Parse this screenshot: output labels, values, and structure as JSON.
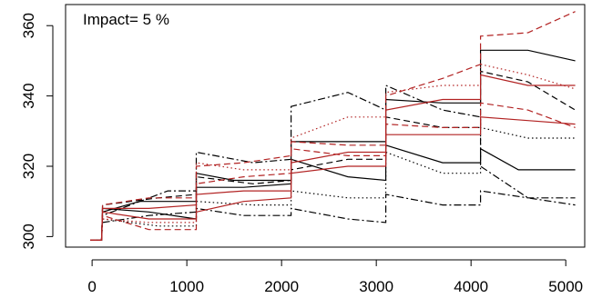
{
  "chart_data": {
    "type": "line",
    "title": "Impact= 5 %",
    "xlabel": "",
    "ylabel": "",
    "xlim": [
      -280,
      5200
    ],
    "ylim": [
      297,
      366
    ],
    "grid": false,
    "legend": "none",
    "x_ticks": [
      0,
      1000,
      2000,
      3000,
      4000,
      5000
    ],
    "y_ticks": [
      300,
      320,
      340,
      360
    ],
    "colors": {
      "black": "#000000",
      "red": "#b22222"
    },
    "series": [
      {
        "color": "black",
        "dash": "solid",
        "points": [
          [
            -20,
            299
          ],
          [
            100,
            299
          ],
          [
            110,
            307
          ],
          [
            500,
            310
          ],
          [
            1100,
            310
          ],
          [
            1100,
            318
          ],
          [
            1500,
            316
          ],
          [
            2100,
            316
          ],
          [
            2100,
            327
          ],
          [
            2600,
            327
          ],
          [
            3100,
            327
          ],
          [
            3100,
            339
          ],
          [
            3700,
            338
          ],
          [
            4100,
            338
          ],
          [
            4100,
            353
          ],
          [
            4600,
            353
          ],
          [
            5100,
            350
          ]
        ]
      },
      {
        "color": "black",
        "dash": "solid",
        "points": [
          [
            -20,
            299
          ],
          [
            100,
            299
          ],
          [
            110,
            308
          ],
          [
            600,
            307
          ],
          [
            1100,
            305
          ],
          [
            1100,
            314
          ],
          [
            1600,
            314
          ],
          [
            2100,
            315
          ],
          [
            2100,
            322
          ],
          [
            2700,
            317
          ],
          [
            3100,
            316
          ],
          [
            3100,
            326
          ],
          [
            3700,
            321
          ],
          [
            4100,
            321
          ],
          [
            4100,
            325
          ],
          [
            4500,
            319
          ],
          [
            5100,
            319
          ]
        ]
      },
      {
        "color": "black",
        "dash": "dashed",
        "points": [
          [
            -20,
            299
          ],
          [
            100,
            299
          ],
          [
            110,
            309
          ],
          [
            700,
            311
          ],
          [
            1100,
            312
          ],
          [
            1100,
            317
          ],
          [
            1700,
            315
          ],
          [
            2100,
            316
          ],
          [
            2100,
            319
          ],
          [
            2700,
            322
          ],
          [
            3100,
            322
          ],
          [
            3100,
            334
          ],
          [
            3700,
            331
          ],
          [
            4100,
            331
          ],
          [
            4100,
            347
          ],
          [
            4600,
            344
          ],
          [
            5100,
            336
          ]
        ]
      },
      {
        "color": "black",
        "dash": "dashdot",
        "points": [
          [
            -20,
            299
          ],
          [
            100,
            299
          ],
          [
            110,
            306
          ],
          [
            800,
            313
          ],
          [
            1100,
            313
          ],
          [
            1100,
            324
          ],
          [
            1700,
            321
          ],
          [
            2100,
            322
          ],
          [
            2100,
            337
          ],
          [
            2700,
            341
          ],
          [
            3100,
            336
          ],
          [
            3100,
            343
          ],
          [
            3700,
            336
          ],
          [
            4100,
            334
          ],
          [
            4100,
            320
          ],
          [
            4600,
            311
          ],
          [
            5100,
            309
          ]
        ]
      },
      {
        "color": "black",
        "dash": "dotted",
        "points": [
          [
            -20,
            299
          ],
          [
            100,
            299
          ],
          [
            110,
            305
          ],
          [
            700,
            303
          ],
          [
            1100,
            303
          ],
          [
            1100,
            310
          ],
          [
            1700,
            309
          ],
          [
            2100,
            309
          ],
          [
            2100,
            313
          ],
          [
            2700,
            311
          ],
          [
            3100,
            311
          ],
          [
            3100,
            324
          ],
          [
            3700,
            318
          ],
          [
            4100,
            318
          ],
          [
            4100,
            331
          ],
          [
            4600,
            328
          ],
          [
            5100,
            328
          ]
        ]
      },
      {
        "color": "black",
        "dash": "dashdot",
        "points": [
          [
            -20,
            299
          ],
          [
            100,
            299
          ],
          [
            110,
            304
          ],
          [
            600,
            306
          ],
          [
            1100,
            307
          ],
          [
            1100,
            308
          ],
          [
            1600,
            306
          ],
          [
            2100,
            306
          ],
          [
            2100,
            308
          ],
          [
            2700,
            305
          ],
          [
            3100,
            304
          ],
          [
            3100,
            312
          ],
          [
            3700,
            309
          ],
          [
            4100,
            309
          ],
          [
            4100,
            313
          ],
          [
            4600,
            311
          ],
          [
            5100,
            311
          ]
        ]
      },
      {
        "color": "red",
        "dash": "dashed",
        "points": [
          [
            -20,
            299
          ],
          [
            100,
            299
          ],
          [
            110,
            309
          ],
          [
            600,
            311
          ],
          [
            1100,
            311
          ],
          [
            1100,
            320
          ],
          [
            1600,
            321
          ],
          [
            2100,
            323
          ],
          [
            2100,
            327
          ],
          [
            2700,
            326
          ],
          [
            3100,
            326
          ],
          [
            3100,
            340
          ],
          [
            3700,
            345
          ],
          [
            4100,
            349
          ],
          [
            4100,
            357
          ],
          [
            4600,
            358
          ],
          [
            5100,
            364
          ]
        ]
      },
      {
        "color": "red",
        "dash": "solid",
        "points": [
          [
            -20,
            299
          ],
          [
            100,
            299
          ],
          [
            110,
            308
          ],
          [
            600,
            308
          ],
          [
            1100,
            309
          ],
          [
            1100,
            312
          ],
          [
            1600,
            313
          ],
          [
            2100,
            313
          ],
          [
            2100,
            321
          ],
          [
            2700,
            324
          ],
          [
            3100,
            324
          ],
          [
            3100,
            336
          ],
          [
            3700,
            339
          ],
          [
            4100,
            339
          ],
          [
            4100,
            346
          ],
          [
            4600,
            343
          ],
          [
            5100,
            343
          ]
        ]
      },
      {
        "color": "red",
        "dash": "solid",
        "points": [
          [
            -20,
            299
          ],
          [
            100,
            299
          ],
          [
            110,
            307
          ],
          [
            600,
            305
          ],
          [
            1100,
            305
          ],
          [
            1100,
            307
          ],
          [
            1600,
            310
          ],
          [
            2100,
            311
          ],
          [
            2100,
            318
          ],
          [
            2700,
            320
          ],
          [
            3100,
            320
          ],
          [
            3100,
            329
          ],
          [
            3700,
            329
          ],
          [
            4100,
            329
          ],
          [
            4100,
            334
          ],
          [
            4600,
            333
          ],
          [
            5100,
            332
          ]
        ]
      },
      {
        "color": "red",
        "dash": "dashed",
        "points": [
          [
            -20,
            299
          ],
          [
            100,
            299
          ],
          [
            110,
            306
          ],
          [
            600,
            302
          ],
          [
            1100,
            302
          ],
          [
            1100,
            315
          ],
          [
            1600,
            317
          ],
          [
            2100,
            318
          ],
          [
            2100,
            325
          ],
          [
            2700,
            323
          ],
          [
            3100,
            323
          ],
          [
            3100,
            332
          ],
          [
            3700,
            331
          ],
          [
            4100,
            331
          ],
          [
            4100,
            338
          ],
          [
            4600,
            336
          ],
          [
            5100,
            331
          ]
        ]
      },
      {
        "color": "red",
        "dash": "dotted",
        "points": [
          [
            -20,
            299
          ],
          [
            100,
            299
          ],
          [
            110,
            305
          ],
          [
            600,
            304
          ],
          [
            1100,
            304
          ],
          [
            1100,
            321
          ],
          [
            1600,
            319
          ],
          [
            2100,
            319
          ],
          [
            2100,
            328
          ],
          [
            2700,
            334
          ],
          [
            3100,
            334
          ],
          [
            3100,
            341
          ],
          [
            3700,
            343
          ],
          [
            4100,
            343
          ],
          [
            4100,
            349
          ],
          [
            4600,
            346
          ],
          [
            5100,
            342
          ]
        ]
      }
    ]
  }
}
